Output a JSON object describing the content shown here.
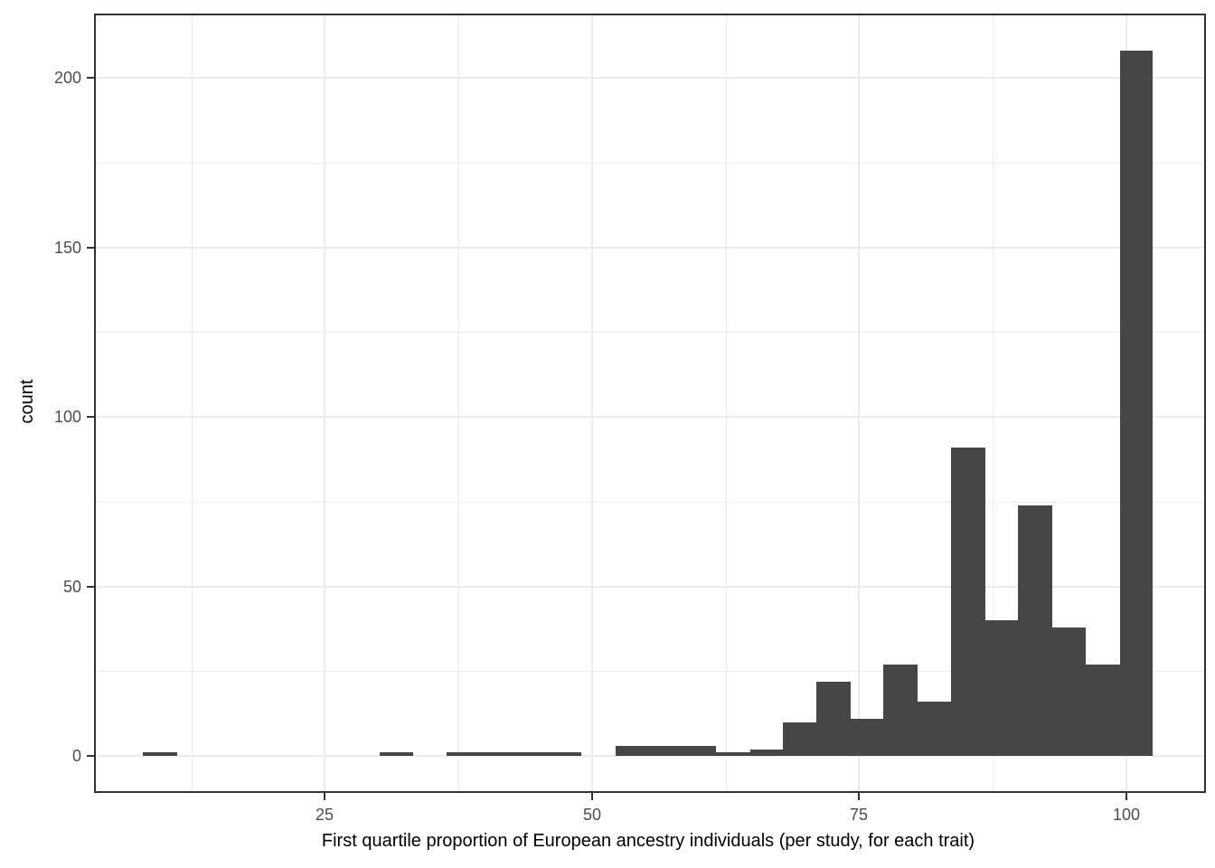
{
  "chart_data": {
    "type": "bar",
    "subtype": "histogram",
    "title": "",
    "xlabel": "First quartile proportion of European ancestry individuals (per study, for each trait)",
    "ylabel": "count",
    "xlim": [
      3.56,
      107.3
    ],
    "ylim": [
      -10.4,
      218.4
    ],
    "x_major_ticks": [
      25,
      50,
      75,
      100
    ],
    "x_minor_gridlines": [
      12.5,
      37.5,
      62.5,
      87.5
    ],
    "y_major_ticks": [
      0,
      50,
      100,
      150,
      200
    ],
    "y_minor_gridlines": [
      25,
      75,
      125,
      175
    ],
    "grid": "on",
    "legend": "none",
    "bins": [
      {
        "x0": 8.0,
        "x1": 11.2,
        "count": 1
      },
      {
        "x0": 30.1,
        "x1": 33.3,
        "count": 1
      },
      {
        "x0": 36.4,
        "x1": 39.6,
        "count": 1
      },
      {
        "x0": 39.6,
        "x1": 42.7,
        "count": 1
      },
      {
        "x0": 42.7,
        "x1": 45.9,
        "count": 1
      },
      {
        "x0": 45.9,
        "x1": 49.0,
        "count": 1
      },
      {
        "x0": 52.2,
        "x1": 55.3,
        "count": 3
      },
      {
        "x0": 55.3,
        "x1": 58.5,
        "count": 3
      },
      {
        "x0": 58.5,
        "x1": 61.6,
        "count": 3
      },
      {
        "x0": 61.6,
        "x1": 64.8,
        "count": 1
      },
      {
        "x0": 64.8,
        "x1": 67.9,
        "count": 2
      },
      {
        "x0": 67.9,
        "x1": 71.0,
        "count": 10
      },
      {
        "x0": 71.0,
        "x1": 74.2,
        "count": 22
      },
      {
        "x0": 74.2,
        "x1": 77.3,
        "count": 11
      },
      {
        "x0": 77.3,
        "x1": 80.5,
        "count": 27
      },
      {
        "x0": 80.5,
        "x1": 83.6,
        "count": 16
      },
      {
        "x0": 83.6,
        "x1": 86.8,
        "count": 91
      },
      {
        "x0": 86.8,
        "x1": 89.9,
        "count": 40
      },
      {
        "x0": 89.9,
        "x1": 93.1,
        "count": 74
      },
      {
        "x0": 93.1,
        "x1": 96.2,
        "count": 38
      },
      {
        "x0": 96.2,
        "x1": 99.4,
        "count": 27
      },
      {
        "x0": 99.4,
        "x1": 102.5,
        "count": 208
      }
    ],
    "colors": {
      "bar_fill": "#464646",
      "panel_border": "#333333",
      "gridline": "#ebebeb",
      "tick_mark": "#333333",
      "tick_label_text": "#4d4d4d",
      "axis_title_text": "#000000",
      "background": "#ffffff"
    }
  }
}
